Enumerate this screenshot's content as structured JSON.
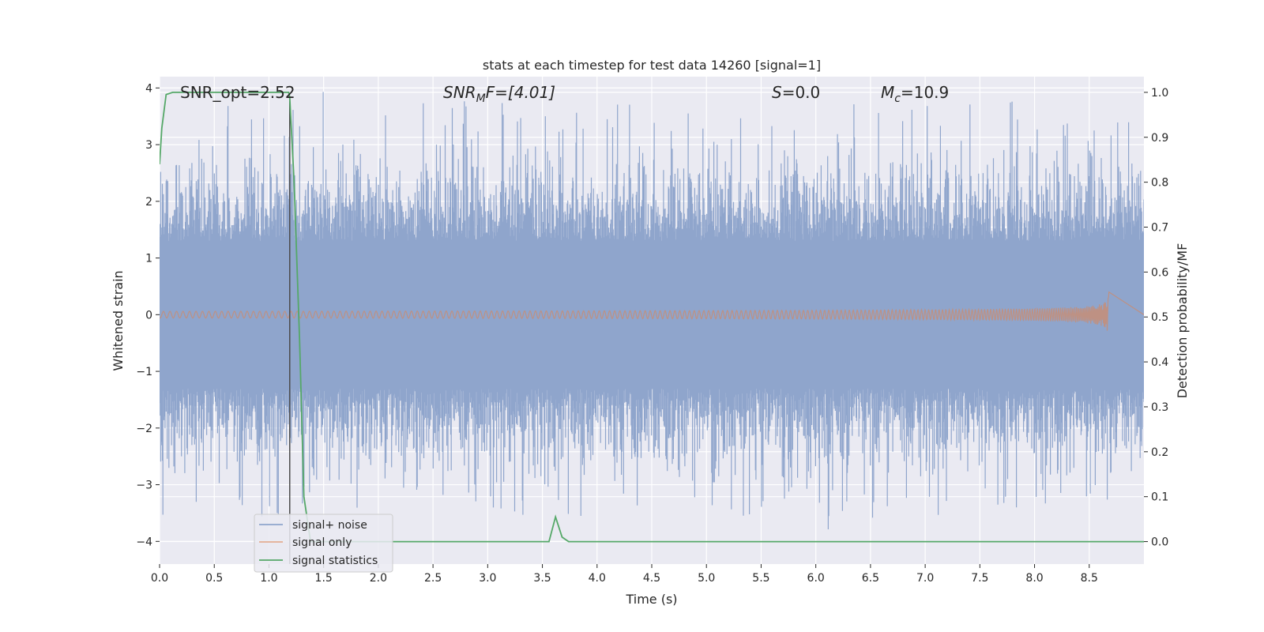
{
  "chart_data": {
    "type": "line",
    "title": "stats at each timestep for test data 14260 [signal=1]",
    "xlabel": "Time (s)",
    "ylabel_left": "Whitened strain",
    "ylabel_right": "Detection probability/MF",
    "xlim": [
      0.0,
      9.0
    ],
    "ylim_left": [
      -4.4,
      4.2
    ],
    "ylim_right": [
      -0.05,
      1.035
    ],
    "x_ticks": [
      "0.0",
      "0.5",
      "1.0",
      "1.5",
      "2.0",
      "2.5",
      "3.0",
      "3.5",
      "4.0",
      "4.5",
      "5.0",
      "5.5",
      "6.0",
      "6.5",
      "7.0",
      "7.5",
      "8.0",
      "8.5"
    ],
    "y_ticks_left": [
      "4",
      "3",
      "2",
      "1",
      "0",
      "−1",
      "−2",
      "−3",
      "−4"
    ],
    "y_ticks_right": [
      "1.0",
      "0.9",
      "0.8",
      "0.7",
      "0.6",
      "0.5",
      "0.4",
      "0.3",
      "0.2",
      "0.1",
      "0.0"
    ],
    "grid": true,
    "legend_position": "lower-left",
    "annotations": {
      "snr_opt": "SNR_opt=2.52",
      "snr_mf_sym": "SNR",
      "snr_mf_sub": "M",
      "snr_mf_rest": "F=[4.01]",
      "s_sym": "S",
      "s_rest": "=0.0",
      "mc_sym": "M",
      "mc_sub": "c",
      "mc_rest": "=10.9"
    },
    "vertical_line_x": 1.19,
    "series": [
      {
        "name": "signal+ noise",
        "axis": "left",
        "color": "#8fa5cc",
        "style": "noise",
        "x_range": [
          0.0,
          9.0
        ],
        "typical_amplitude": 1.0,
        "peak_max": 3.8,
        "peak_min": -3.6
      },
      {
        "name": "signal only",
        "axis": "left",
        "color": "#dd8452",
        "style": "chirp",
        "x_range": [
          0.0,
          8.68
        ],
        "peak_amplitude": 0.4
      },
      {
        "name": "signal statistics",
        "axis": "right",
        "color": "#55a868",
        "style": "line",
        "x": [
          0.0,
          0.02,
          0.06,
          0.12,
          0.2,
          0.5,
          0.8,
          1.0,
          1.18,
          1.19,
          1.23,
          1.28,
          1.32,
          1.38,
          1.5,
          2.0,
          2.5,
          3.0,
          3.5,
          3.56,
          3.62,
          3.68,
          3.74,
          3.8,
          4.0,
          5.0,
          6.0,
          7.0,
          8.0,
          9.0
        ],
        "y": [
          0.84,
          0.92,
          0.995,
          1.0,
          1.0,
          1.0,
          1.0,
          1.0,
          1.0,
          0.99,
          0.8,
          0.45,
          0.1,
          0.0,
          0.0,
          0.0,
          0.0,
          0.0,
          0.0,
          0.0,
          0.055,
          0.01,
          0.0,
          0.0,
          0.0,
          0.0,
          0.0,
          0.0,
          0.0,
          0.0
        ]
      }
    ]
  }
}
